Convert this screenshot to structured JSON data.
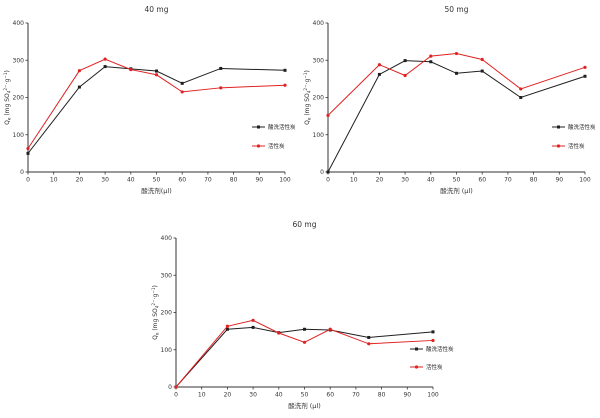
{
  "page": {
    "background": "#ffffff",
    "axis_color": "#333333",
    "text_color": "#333333"
  },
  "chart_data": [
    {
      "type": "line",
      "title": "40 mg",
      "xlabel": "酸洗剂(μl)",
      "ylabel": "Qₑ (mg SO₄²⁻·g⁻¹)",
      "ylabel_parts": [
        {
          "t": "Q"
        },
        {
          "t": "e",
          "s": "sub"
        },
        {
          "t": " (mg SO"
        },
        {
          "t": "4",
          "s": "sub"
        },
        {
          "t": "2−",
          "s": "sup"
        },
        {
          "t": "·g"
        },
        {
          "t": "−1",
          "s": "sup"
        },
        {
          "t": ")"
        }
      ],
      "xlim": [
        0,
        100
      ],
      "ylim": [
        0,
        400
      ],
      "xticks": [
        0,
        10,
        20,
        30,
        40,
        50,
        60,
        70,
        80,
        90,
        100
      ],
      "yticks": [
        0,
        100,
        200,
        300,
        400
      ],
      "grid": false,
      "legend_position": "inside-right",
      "x": [
        0,
        20,
        30,
        40,
        50,
        60,
        75,
        100
      ],
      "series": [
        {
          "name": "酸洗活性炭",
          "color": "#1f1f1f",
          "marker": "square",
          "values": [
            50,
            228,
            283,
            277,
            271,
            238,
            278,
            273
          ]
        },
        {
          "name": "活性炭",
          "color": "#e02222",
          "marker": "circle",
          "values": [
            63,
            272,
            303,
            275,
            261,
            215,
            226,
            233
          ]
        }
      ]
    },
    {
      "type": "line",
      "title": "50 mg",
      "xlabel": "酸洗剂 (μl)",
      "ylabel": "Qₑ (mg SO₄²⁻·g⁻¹)",
      "ylabel_parts": [
        {
          "t": "Q"
        },
        {
          "t": "e",
          "s": "sub"
        },
        {
          "t": " (mg SO"
        },
        {
          "t": "4",
          "s": "sub"
        },
        {
          "t": "2−",
          "s": "sup"
        },
        {
          "t": "·g"
        },
        {
          "t": "−1",
          "s": "sup"
        },
        {
          "t": ")"
        }
      ],
      "xlim": [
        0,
        100
      ],
      "ylim": [
        0,
        400
      ],
      "xticks": [
        0,
        10,
        20,
        30,
        40,
        50,
        60,
        70,
        80,
        90,
        100
      ],
      "yticks": [
        0,
        100,
        200,
        300,
        400
      ],
      "grid": false,
      "legend_position": "inside-right",
      "x": [
        0,
        20,
        30,
        40,
        50,
        60,
        75,
        100
      ],
      "series": [
        {
          "name": "酸洗活性炭",
          "color": "#1f1f1f",
          "marker": "square",
          "values": [
            0,
            262,
            299,
            296,
            265,
            271,
            200,
            257
          ]
        },
        {
          "name": "活性炭",
          "color": "#e02222",
          "marker": "circle",
          "values": [
            152,
            288,
            259,
            311,
            318,
            302,
            223,
            281
          ]
        }
      ]
    },
    {
      "type": "line",
      "title": "60 mg",
      "xlabel": "酸洗剂 (μl)",
      "ylabel": "Qₑ (mg SO₄²⁻·g⁻¹)",
      "ylabel_parts": [
        {
          "t": "Q"
        },
        {
          "t": "e",
          "s": "sub"
        },
        {
          "t": " (mg SO"
        },
        {
          "t": "4",
          "s": "sub"
        },
        {
          "t": "2−",
          "s": "sup"
        },
        {
          "t": "·g"
        },
        {
          "t": "−1",
          "s": "sup"
        },
        {
          "t": ")"
        }
      ],
      "xlim": [
        0,
        100
      ],
      "ylim": [
        0,
        400
      ],
      "xticks": [
        0,
        10,
        20,
        30,
        40,
        50,
        60,
        70,
        80,
        90,
        100
      ],
      "yticks": [
        0,
        100,
        200,
        300,
        400
      ],
      "grid": false,
      "legend_position": "inside-right",
      "x": [
        0,
        20,
        30,
        40,
        50,
        60,
        75,
        100
      ],
      "series": [
        {
          "name": "酸洗活性炭",
          "color": "#1f1f1f",
          "marker": "square",
          "values": [
            0,
            155,
            160,
            146,
            155,
            153,
            133,
            148
          ]
        },
        {
          "name": "活性炭",
          "color": "#e02222",
          "marker": "circle",
          "values": [
            0,
            163,
            179,
            145,
            120,
            155,
            116,
            125
          ]
        }
      ]
    }
  ]
}
